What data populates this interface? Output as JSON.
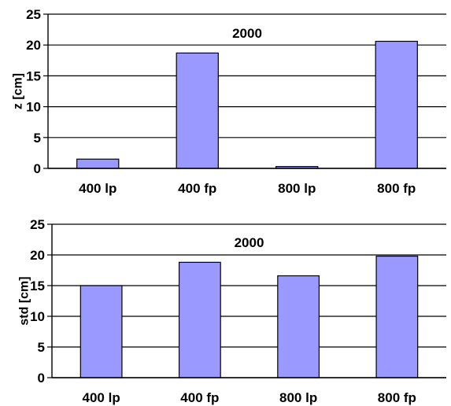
{
  "colors": {
    "bar_fill": "#9999ff",
    "bar_stroke": "#000000",
    "grid": "#000000",
    "background": "#ffffff"
  },
  "chart_data": [
    {
      "type": "bar",
      "title": "2000",
      "xlabel": "",
      "ylabel": "z [cm]",
      "categories": [
        "400 lp",
        "400 fp",
        "800 lp",
        "800 fp"
      ],
      "values": [
        1.5,
        18.7,
        0.3,
        20.6
      ],
      "ylim": [
        0,
        25
      ],
      "yticks": [
        "0",
        "5",
        "10",
        "15",
        "20",
        "25"
      ],
      "grid": true,
      "legend": "none"
    },
    {
      "type": "bar",
      "title": "2000",
      "xlabel": "",
      "ylabel": "std [cm]",
      "categories": [
        "400 lp",
        "400 fp",
        "800 lp",
        "800 fp"
      ],
      "values": [
        15.0,
        18.8,
        16.6,
        19.8
      ],
      "ylim": [
        0,
        25
      ],
      "yticks": [
        "0",
        "5",
        "10",
        "15",
        "20",
        "25"
      ],
      "grid": true,
      "legend": "none"
    }
  ]
}
